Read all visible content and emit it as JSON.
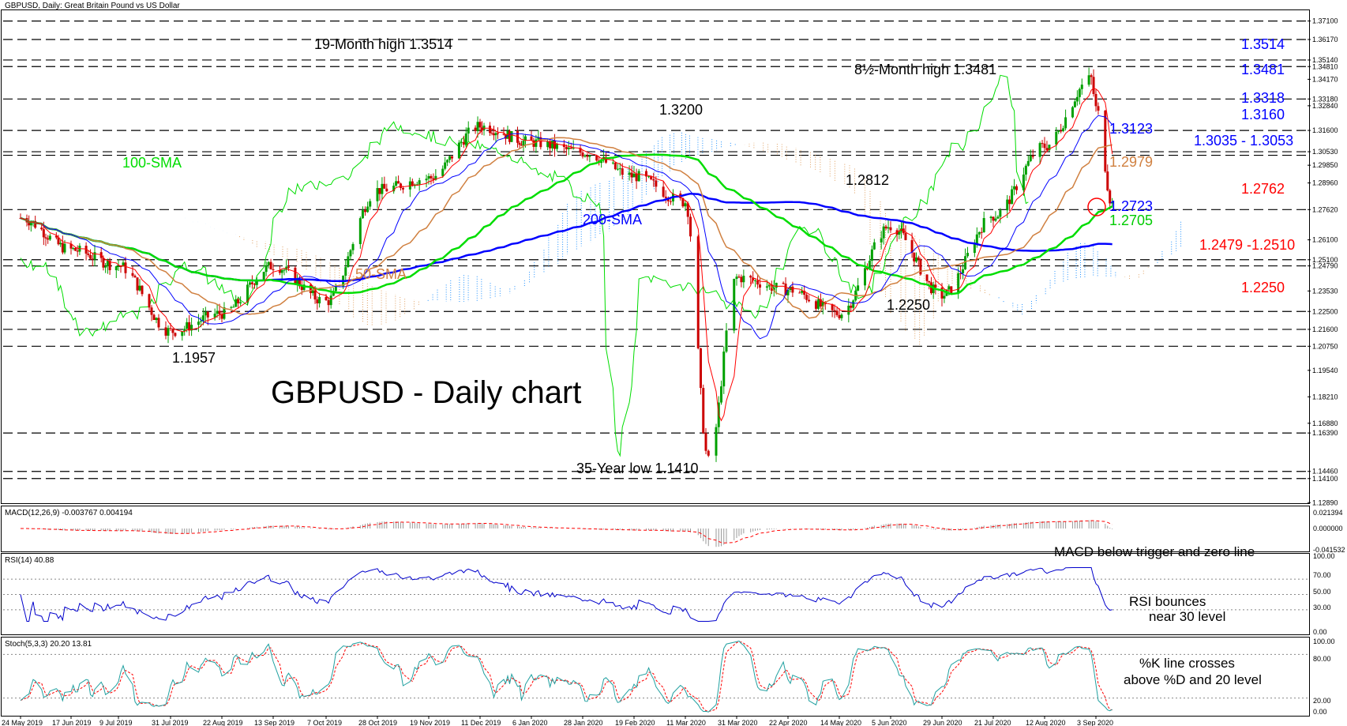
{
  "header": {
    "main": "GBPUSD, Daily:  Great Britain Pound vs US Dollar",
    "macd": "MACD(12,26,9) -0.003767 0.004194",
    "rsi": "RSI(14) 40.88",
    "stoch": "Stoch(5,3,3) 20.20 13.81"
  },
  "title": "GBPUSD - Daily chart",
  "colors": {
    "price_line": "#00dd00",
    "sma100": "#00dd00",
    "sma200": "#0000ff",
    "sma50": "#d08040",
    "tenkan": "#ff0000",
    "kijun": "#0000ff",
    "cloud_blue": "#1e90ff",
    "cloud_orange": "#e0a060",
    "bull": "#00a000",
    "bear": "#cc0000",
    "label_blue": "#0000ff",
    "label_red": "#ff0000",
    "label_green": "#00cc00",
    "label_orange": "#d08040"
  },
  "chart_data": [
    {
      "type": "candlestick",
      "name": "GBPUSD Daily",
      "ylim": [
        1.129,
        1.376
      ],
      "y_ticks": [
        "1.37100",
        "1.36170",
        "1.35140",
        "1.34810",
        "1.34170",
        "1.33180",
        "1.32840",
        "1.31600",
        "1.30530",
        "1.29850",
        "1.28960",
        "1.27620",
        "1.26100",
        "1.25100",
        "1.24790",
        "1.23530",
        "1.22500",
        "1.21600",
        "1.20750",
        "1.19540",
        "1.18210",
        "1.16880",
        "1.16390",
        "1.14460",
        "1.14100",
        "1.12890"
      ],
      "x_ticks": [
        "24 May 2019",
        "17 Jun 2019",
        "9 Jul 2019",
        "31 Jul 2019",
        "22 Aug 2019",
        "13 Sep 2019",
        "7 Oct 2019",
        "28 Oct 2019",
        "19 Nov 2019",
        "11 Dec 2019",
        "6 Jan 2020",
        "28 Jan 2020",
        "19 Feb 2020",
        "11 Mar 2020",
        "31 Mar 2020",
        "22 Apr 2020",
        "14 May 2020",
        "5 Jun 2020",
        "29 Jun 2020",
        "21 Jul 2020",
        "12 Aug 2020",
        "3 Sep 2020"
      ],
      "horizontal_levels": [
        1.371,
        1.3617,
        1.3514,
        1.3481,
        1.3318,
        1.316,
        1.3053,
        1.3035,
        1.2762,
        1.251,
        1.2479,
        1.225,
        1.216,
        1.2075,
        1.1639,
        1.1446,
        1.141
      ],
      "key_closes": [
        {
          "date": "24 May 2019",
          "value": 1.272
        },
        {
          "date": "17 Jun 2019",
          "value": 1.256
        },
        {
          "date": "9 Jul 2019",
          "value": 1.248
        },
        {
          "date": "31 Jul 2019",
          "value": 1.215
        },
        {
          "date": "22 Aug 2019",
          "value": 1.224
        },
        {
          "date": "13 Sep 2019",
          "value": 1.248
        },
        {
          "date": "7 Oct 2019",
          "value": 1.23
        },
        {
          "date": "28 Oct 2019",
          "value": 1.286
        },
        {
          "date": "19 Nov 2019",
          "value": 1.292
        },
        {
          "date": "11 Dec 2019",
          "value": 1.318
        },
        {
          "date": "6 Jan 2020",
          "value": 1.31
        },
        {
          "date": "28 Jan 2020",
          "value": 1.305
        },
        {
          "date": "19 Feb 2020",
          "value": 1.293
        },
        {
          "date": "11 Mar 2020",
          "value": 1.28
        },
        {
          "date": "20 Mar 2020",
          "value": 1.15
        },
        {
          "date": "31 Mar 2020",
          "value": 1.242
        },
        {
          "date": "22 Apr 2020",
          "value": 1.236
        },
        {
          "date": "14 May 2020",
          "value": 1.224
        },
        {
          "date": "5 Jun 2020",
          "value": 1.268
        },
        {
          "date": "29 Jun 2020",
          "value": 1.233
        },
        {
          "date": "21 Jul 2020",
          "value": 1.273
        },
        {
          "date": "12 Aug 2020",
          "value": 1.308
        },
        {
          "date": "1 Sep 2020",
          "value": 1.342
        },
        {
          "date": "3 Sep 2020",
          "value": 1.327
        },
        {
          "date": "10 Sep 2020",
          "value": 1.279
        }
      ],
      "annotations": [
        {
          "text": "19-Month high 1.3514",
          "color": "black"
        },
        {
          "text": "8½-Month high 1.3481",
          "color": "black"
        },
        {
          "text": "1.3200",
          "color": "black"
        },
        {
          "text": "1.2812",
          "color": "black"
        },
        {
          "text": "1.2250",
          "color": "black"
        },
        {
          "text": "1.1957",
          "color": "black"
        },
        {
          "text": "35-Year low 1.1410",
          "color": "black"
        },
        {
          "text": "100-SMA",
          "color": "green"
        },
        {
          "text": "200-SMA",
          "color": "blue"
        },
        {
          "text": "50-SMA",
          "color": "orange"
        }
      ],
      "right_labels": [
        {
          "text": "1.3514",
          "color": "blue"
        },
        {
          "text": "1.3481",
          "color": "blue"
        },
        {
          "text": "1.3318",
          "color": "blue"
        },
        {
          "text": "1.3160",
          "color": "blue"
        },
        {
          "text": "1.3123",
          "color": "blue"
        },
        {
          "text": "1.3035 - 1.3053",
          "color": "blue"
        },
        {
          "text": "1.2979",
          "color": "orange"
        },
        {
          "text": "1.2762",
          "color": "red"
        },
        {
          "text": "1.2723",
          "color": "blue"
        },
        {
          "text": "1.2705",
          "color": "green"
        },
        {
          "text": "1.2479 -1.2510",
          "color": "red"
        },
        {
          "text": "1.2250",
          "color": "red"
        }
      ]
    },
    {
      "type": "histogram",
      "name": "MACD(12,26,9)",
      "values_text": "-0.003767 0.004194",
      "y_ticks": [
        "0.021394",
        "0.000000",
        "-0.041532"
      ],
      "note": "MACD below trigger and zero line"
    },
    {
      "type": "line",
      "name": "RSI(14)",
      "values_text": "40.88",
      "y_ticks": [
        "100.00",
        "70.00",
        "50.00",
        "30.00",
        "0.00"
      ],
      "ylim": [
        0,
        100
      ],
      "note_lines": [
        "RSI bounces",
        "near 30 level"
      ]
    },
    {
      "type": "line",
      "name": "Stoch(5,3,3)",
      "values_text": "20.20 13.81",
      "y_ticks": [
        "100.00",
        "80.00",
        "20.00",
        "0.00"
      ],
      "ylim": [
        0,
        100
      ],
      "note_lines": [
        "%K line crosses",
        "above %D and 20 level"
      ]
    }
  ]
}
